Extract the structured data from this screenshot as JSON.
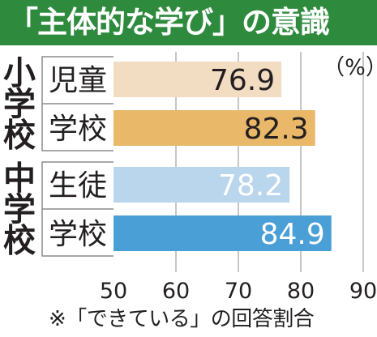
{
  "title": "「主体的な学び」の意識",
  "footnote": "※「できている」の回答割合",
  "chart_data": {
    "type": "bar",
    "orientation": "horizontal",
    "unit_label": "（%）",
    "xlim": [
      50,
      90
    ],
    "xticks": [
      50,
      60,
      70,
      80,
      90
    ],
    "groups": [
      {
        "name": "小学校",
        "categories": [
          "児童",
          "学校"
        ]
      },
      {
        "name": "中学校",
        "categories": [
          "生徒",
          "学校"
        ]
      }
    ],
    "bars": [
      {
        "group": "小学校",
        "category": "児童",
        "value": 76.9,
        "color": "#f2dcc2",
        "label_color": "#231f20"
      },
      {
        "group": "小学校",
        "category": "学校",
        "value": 82.3,
        "color": "#e9b868",
        "label_color": "#231f20"
      },
      {
        "group": "中学校",
        "category": "生徒",
        "value": 78.2,
        "color": "#b9d6ec",
        "label_color": "#ffffff"
      },
      {
        "group": "中学校",
        "category": "学校",
        "value": 84.9,
        "color": "#4a9fd6",
        "label_color": "#ffffff"
      }
    ],
    "grid": true
  }
}
